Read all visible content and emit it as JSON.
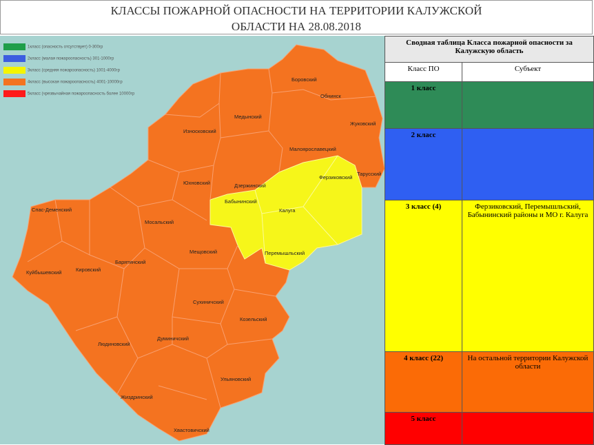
{
  "header": {
    "title_line1": "КЛАССЫ ПОЖАРНОЙ ОПАСНОСТИ НА ТЕРРИТОРИИ КАЛУЖСКОЙ",
    "title_line2": "ОБЛАСТИ НА 28.08.2018"
  },
  "legend": [
    {
      "label": "1класс (опасность отсутствует) 0-300гр",
      "color": "#1f9e4a"
    },
    {
      "label": "2класс (малая пожароопасность) 301-1000гр",
      "color": "#3c5de0"
    },
    {
      "label": "3класс (средняя пожароопасность) 1001-4000гр",
      "color": "#f5f500"
    },
    {
      "label": "4класс (высокая пожароопасность) 4001-10000гр",
      "color": "#f47320"
    },
    {
      "label": "5класс (чрезвычайная пожароопасность более 10000гр",
      "color": "#ff1a1a"
    }
  ],
  "districts": [
    "Боровский",
    "Обнинск",
    "Медынский",
    "Износковский",
    "Жуковский",
    "Малоярославецкий",
    "Тарусский",
    "Ферзиковский",
    "Юхновский",
    "Дзержинский",
    "Бабынинский",
    "Калуга",
    "Спас-Деменский",
    "Мосальский",
    "Перемышльский",
    "Мещовский",
    "Барятинский",
    "Кировский",
    "Куйбышевский",
    "Сухиничский",
    "Козельский",
    "Людиновский",
    "Думиничский",
    "Ульяновский",
    "Жиздринский",
    "Хвастовичский"
  ],
  "table": {
    "title": "Сводная таблица Класса пожарной опасности за Калужскую область",
    "columns": [
      "Класс ПО",
      "Субъект"
    ],
    "rows": [
      {
        "class": "1 класс",
        "color": "#2e8b57"
      },
      {
        "class": "2 класс",
        "color": "#2f5ff2"
      },
      {
        "class": "3 класс (4)",
        "color": "#ffff00",
        "subject": "Ферзиковский, Перемышльский, Бабынинский районы и МО г. Калуга"
      },
      {
        "class": "4 класс (22)",
        "color": "#fb6b06",
        "subject": "На остальной территории Калужской области"
      },
      {
        "class": "5 класс",
        "color": "#ff0000"
      }
    ]
  }
}
